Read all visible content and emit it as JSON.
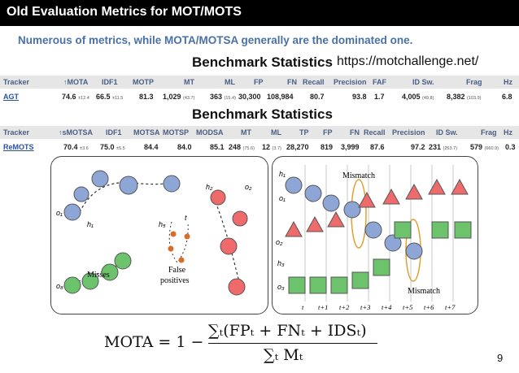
{
  "slide": {
    "title": "Old Evaluation Metrics for MOT/MOTS",
    "subtitle": "Numerous of metrics, while MOTA/MOTSA generally are the dominated one.",
    "page_number": "9"
  },
  "benchmark1": {
    "heading": "Benchmark Statistics",
    "url": "https://motchallenge.net/",
    "headers": [
      "Tracker",
      "↑MOTA",
      "IDF1",
      "MOTP",
      "MT",
      "ML",
      "FP",
      "FN",
      "Recall",
      "Precision",
      "FAF",
      "ID Sw.",
      "Frag",
      "Hz"
    ],
    "row": {
      "tracker": "AGT",
      "mota": "74.6",
      "mota_sub": "±12.4",
      "idf1": "66.5",
      "idf1_sub": "±11.5",
      "motp": "81.3",
      "mt": "1,029",
      "mt_sub": "(43.7)",
      "ml": "363",
      "ml_sub": "(15.4)",
      "fp": "30,300",
      "fn": "108,984",
      "recall": "80.7",
      "precision": "93.8",
      "faf": "1.7",
      "idsw": "4,005",
      "idsw_sub": "(49.8)",
      "frag": "8,382",
      "frag_sub": "(103.9)",
      "hz": "6.8"
    }
  },
  "benchmark2": {
    "heading": "Benchmark Statistics",
    "headers": [
      "Tracker",
      "↑sMOTSA",
      "IDF1",
      "MOTSA",
      "MOTSP",
      "MODSA",
      "MT",
      "ML",
      "TP",
      "FP",
      "FN",
      "Recall",
      "Precision",
      "ID Sw.",
      "Frag",
      "Hz"
    ],
    "row": {
      "tracker": "ReMOTS",
      "smotsa": "70.4",
      "smotsa_sub": "±3.6",
      "idf1": "75.0",
      "idf1_sub": "±5.5",
      "motsa": "84.4",
      "motsp": "84.0",
      "modsa": "85.1",
      "mt": "248",
      "mt_sub": "(75.6)",
      "ml": "12",
      "ml_sub": "(3.7)",
      "tp": "28,270",
      "fp": "819",
      "fn": "3,999",
      "recall": "87.6",
      "precision": "97.2",
      "idsw": "231",
      "idsw_sub": "(263.7)",
      "frag": "579",
      "frag_sub": "(660.9)",
      "hz": "0.3"
    }
  },
  "diagram_left": {
    "labels": {
      "o1": "o₁",
      "h1": "h₁",
      "h2": "h₂",
      "o2": "o₂",
      "h5": "h₅",
      "t": "t",
      "o8": "o₈",
      "misses": "Misses",
      "false": "False",
      "positives": "positives"
    }
  },
  "diagram_right": {
    "labels": {
      "h1": "h₁",
      "o1": "o₁",
      "o2": "o₂",
      "h3": "h₃",
      "o3": "o₃",
      "mismatch_top": "Mismatch",
      "mismatch_bottom": "Mismatch"
    },
    "time_labels": [
      "t",
      "t+1",
      "t+2",
      "t+3",
      "t+4",
      "t+5",
      "t+6",
      "t+7"
    ]
  },
  "formula": {
    "lhs": "MOTA = 1 −",
    "numerator": "∑ₜ(FPₜ + FNₜ + IDSₜ)",
    "denominator": "∑ₜ Mₜ"
  }
}
